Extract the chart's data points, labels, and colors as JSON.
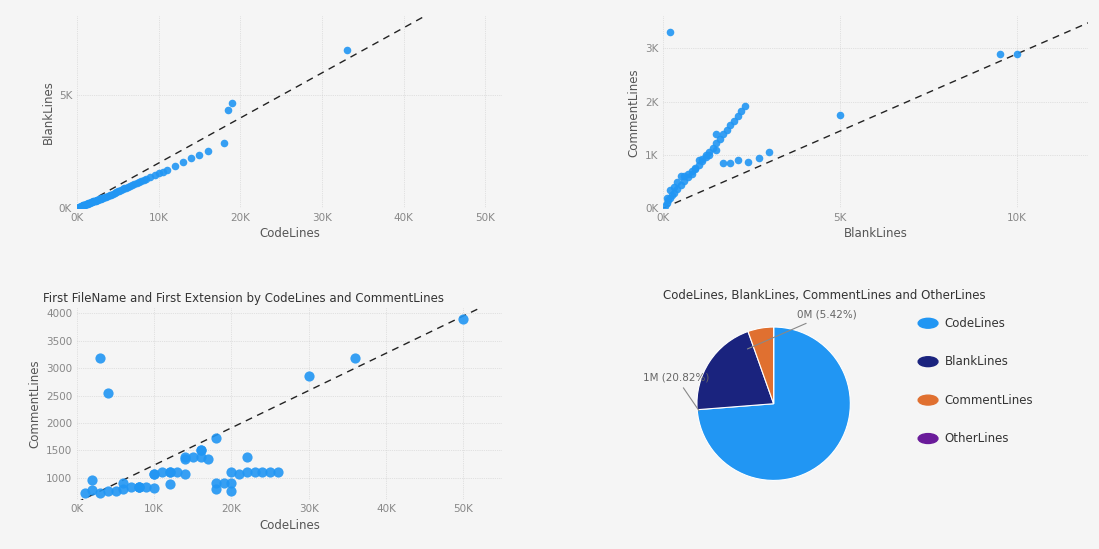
{
  "bg_color": "#f5f5f5",
  "dot_color": "#2196f3",
  "dot_size": 30,
  "dashed_line_color": "#222222",
  "scatter1": {
    "xlabel": "CodeLines",
    "ylabel": "BlankLines",
    "xlim": [
      0,
      52000
    ],
    "ylim": [
      0,
      8500
    ],
    "xticks": [
      0,
      10000,
      20000,
      30000,
      40000,
      50000
    ],
    "xtick_labels": [
      "0K",
      "10K",
      "20K",
      "30K",
      "40K",
      "50K"
    ],
    "yticks": [
      0,
      5000
    ],
    "ytick_labels": [
      "0K",
      "5K"
    ],
    "diag_slope": 0.2,
    "x": [
      200,
      300,
      400,
      500,
      600,
      700,
      800,
      900,
      1000,
      1100,
      1200,
      1300,
      1400,
      1500,
      1600,
      1700,
      1800,
      1900,
      2000,
      2100,
      2200,
      2300,
      2400,
      2500,
      2600,
      2700,
      2800,
      2900,
      3000,
      3100,
      3200,
      3400,
      3600,
      3800,
      4000,
      4200,
      4400,
      4600,
      4800,
      5000,
      5200,
      5400,
      5600,
      5800,
      6000,
      6200,
      6500,
      6800,
      7000,
      7300,
      7600,
      7900,
      8200,
      8500,
      9000,
      9500,
      10000,
      10500,
      11000,
      12000,
      13000,
      14000,
      15000,
      16000,
      18000,
      18500,
      19000,
      33000
    ],
    "y": [
      50,
      60,
      70,
      100,
      110,
      120,
      130,
      140,
      155,
      170,
      185,
      195,
      210,
      230,
      245,
      260,
      270,
      285,
      300,
      310,
      325,
      340,
      355,
      365,
      380,
      395,
      410,
      420,
      435,
      450,
      460,
      480,
      510,
      540,
      570,
      605,
      640,
      675,
      710,
      740,
      775,
      810,
      840,
      875,
      905,
      940,
      985,
      1030,
      1060,
      1105,
      1150,
      1195,
      1245,
      1295,
      1375,
      1455,
      1540,
      1620,
      1700,
      1860,
      2040,
      2210,
      2380,
      2550,
      2880,
      4350,
      4650,
      7000
    ]
  },
  "scatter2": {
    "xlabel": "BlankLines",
    "ylabel": "CommentLines",
    "xlim": [
      0,
      12000
    ],
    "ylim": [
      0,
      3600
    ],
    "xticks": [
      0,
      5000,
      10000
    ],
    "xtick_labels": [
      "0K",
      "5K",
      "10K"
    ],
    "yticks": [
      0,
      1000,
      2000,
      3000
    ],
    "ytick_labels": [
      "0K",
      "1K",
      "2K",
      "3K"
    ],
    "diag_slope": 0.29,
    "x": [
      50,
      100,
      150,
      200,
      250,
      300,
      400,
      500,
      600,
      700,
      800,
      900,
      1000,
      1100,
      1200,
      1300,
      1400,
      1500,
      1600,
      1700,
      1800,
      1900,
      2000,
      2100,
      2200,
      2300,
      100,
      200,
      300,
      500,
      700,
      900,
      1100,
      1300,
      1500,
      1700,
      1900,
      2100,
      2400,
      2700,
      3000,
      5000,
      9500,
      10000,
      400,
      600,
      800,
      1000,
      1200,
      1500,
      200
    ],
    "y": [
      50,
      100,
      150,
      200,
      250,
      290,
      360,
      430,
      510,
      580,
      650,
      730,
      810,
      890,
      970,
      1060,
      1130,
      1230,
      1300,
      1390,
      1470,
      1560,
      1640,
      1740,
      1820,
      1920,
      200,
      350,
      400,
      600,
      650,
      750,
      920,
      1000,
      1100,
      850,
      850,
      900,
      870,
      950,
      1050,
      1750,
      2900,
      2900,
      500,
      600,
      700,
      900,
      1000,
      1400,
      3300
    ]
  },
  "scatter3": {
    "title": "First FileName and First Extension by CodeLines and CommentLines",
    "xlabel": "CodeLines",
    "ylabel": "CommentLines",
    "xlim": [
      0,
      55000
    ],
    "ylim": [
      600,
      4100
    ],
    "xticks": [
      0,
      10000,
      20000,
      30000,
      40000,
      50000
    ],
    "xtick_labels": [
      "0K",
      "10K",
      "20K",
      "30K",
      "40K",
      "50K"
    ],
    "yticks": [
      1000,
      1500,
      2000,
      2500,
      3000,
      3500,
      4000
    ],
    "ytick_labels": [
      "1000",
      "1500",
      "2000",
      "2500",
      "3000",
      "3500",
      "4000"
    ],
    "diag_slope": 0.068,
    "diag_intercept": 550,
    "x": [
      1000,
      2000,
      3000,
      4000,
      5000,
      6000,
      7000,
      8000,
      9000,
      10000,
      11000,
      12000,
      13000,
      14000,
      15000,
      16000,
      17000,
      18000,
      19000,
      20000,
      21000,
      22000,
      23000,
      24000,
      25000,
      26000,
      30000,
      36000,
      50000,
      2000,
      3000,
      4000,
      6000,
      8000,
      10000,
      12000,
      14000,
      16000,
      18000,
      20000,
      22000,
      10000,
      12000,
      14000,
      16000,
      8000,
      18000,
      20000
    ],
    "y": [
      720,
      780,
      720,
      760,
      750,
      800,
      830,
      830,
      830,
      1060,
      1110,
      1110,
      1110,
      1350,
      1380,
      1380,
      1350,
      1720,
      900,
      900,
      1060,
      1110,
      1110,
      1110,
      1110,
      1110,
      2850,
      3190,
      3900,
      960,
      3190,
      2550,
      900,
      830,
      810,
      890,
      1380,
      1500,
      910,
      1110,
      1380,
      1060,
      1110,
      1060,
      1510,
      830,
      800,
      750
    ]
  },
  "pie": {
    "title": "CodeLines, BlankLines, CommentLines and OtherLines",
    "label_orange": "0M (5.42%)",
    "label_darkblue": "1M (20.82%)",
    "sizes": [
      73.76,
      20.82,
      5.42,
      0.0
    ],
    "colors": [
      "#2196f3",
      "#1a237e",
      "#e07030",
      "#6a1b9a"
    ],
    "legend_labels": [
      "CodeLines",
      "BlankLines",
      "CommentLines",
      "OtherLines"
    ],
    "legend_colors": [
      "#2196f3",
      "#1a237e",
      "#e07030",
      "#6a1b9a"
    ],
    "startangle": 90
  }
}
